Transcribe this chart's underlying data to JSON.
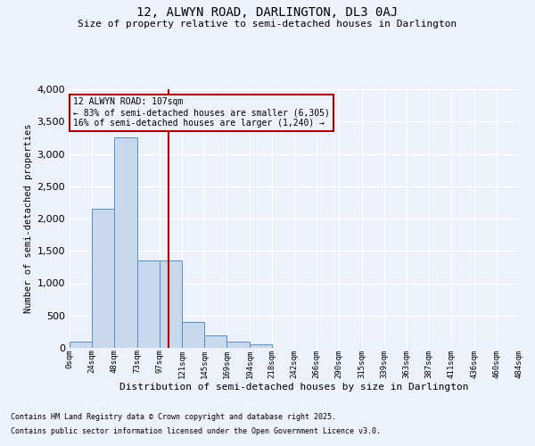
{
  "title1": "12, ALWYN ROAD, DARLINGTON, DL3 0AJ",
  "title2": "Size of property relative to semi-detached houses in Darlington",
  "xlabel": "Distribution of semi-detached houses by size in Darlington",
  "ylabel": "Number of semi-detached properties",
  "annotation_line1": "12 ALWYN ROAD: 107sqm",
  "annotation_line2": "← 83% of semi-detached houses are smaller (6,305)",
  "annotation_line3": "16% of semi-detached houses are larger (1,240) →",
  "footnote1": "Contains HM Land Registry data © Crown copyright and database right 2025.",
  "footnote2": "Contains public sector information licensed under the Open Government Licence v3.0.",
  "bin_edges": [
    0,
    24,
    48,
    73,
    97,
    121,
    145,
    169,
    194,
    218,
    242,
    266,
    290,
    315,
    339,
    363,
    387,
    411,
    436,
    460,
    484
  ],
  "bin_labels": [
    "0sqm",
    "24sqm",
    "48sqm",
    "73sqm",
    "97sqm",
    "121sqm",
    "145sqm",
    "169sqm",
    "194sqm",
    "218sqm",
    "242sqm",
    "266sqm",
    "290sqm",
    "315sqm",
    "339sqm",
    "363sqm",
    "387sqm",
    "411sqm",
    "436sqm",
    "460sqm",
    "484sqm"
  ],
  "bar_heights": [
    100,
    2150,
    3250,
    1350,
    1350,
    400,
    200,
    100,
    50,
    0,
    0,
    0,
    0,
    0,
    0,
    0,
    0,
    0,
    0,
    0
  ],
  "bar_color": "#c8d9ee",
  "bar_edge_color": "#5a8fc3",
  "vline_x": 107,
  "vline_color": "#aa0000",
  "annotation_box_edge": "#aa0000",
  "ylim": [
    0,
    4000
  ],
  "yticks": [
    0,
    500,
    1000,
    1500,
    2000,
    2500,
    3000,
    3500,
    4000
  ],
  "bg_color": "#edf1f9",
  "grid_color": "#ffffff"
}
